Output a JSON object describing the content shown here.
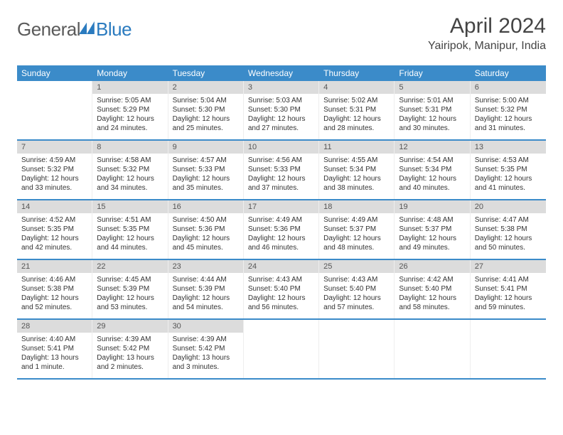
{
  "logo": {
    "word1": "General",
    "word2": "Blue"
  },
  "title": "April 2024",
  "location": "Yairipok, Manipur, India",
  "colors": {
    "header_bg": "#3b8bc9",
    "header_text": "#ffffff",
    "daynum_bg": "#dcdcdc",
    "logo_blue": "#2b7bbf",
    "text": "#333333",
    "week_border": "#3b8bc9"
  },
  "day_names": [
    "Sunday",
    "Monday",
    "Tuesday",
    "Wednesday",
    "Thursday",
    "Friday",
    "Saturday"
  ],
  "weeks": [
    [
      null,
      {
        "n": "1",
        "sr": "Sunrise: 5:05 AM",
        "ss": "Sunset: 5:29 PM",
        "d1": "Daylight: 12 hours",
        "d2": "and 24 minutes."
      },
      {
        "n": "2",
        "sr": "Sunrise: 5:04 AM",
        "ss": "Sunset: 5:30 PM",
        "d1": "Daylight: 12 hours",
        "d2": "and 25 minutes."
      },
      {
        "n": "3",
        "sr": "Sunrise: 5:03 AM",
        "ss": "Sunset: 5:30 PM",
        "d1": "Daylight: 12 hours",
        "d2": "and 27 minutes."
      },
      {
        "n": "4",
        "sr": "Sunrise: 5:02 AM",
        "ss": "Sunset: 5:31 PM",
        "d1": "Daylight: 12 hours",
        "d2": "and 28 minutes."
      },
      {
        "n": "5",
        "sr": "Sunrise: 5:01 AM",
        "ss": "Sunset: 5:31 PM",
        "d1": "Daylight: 12 hours",
        "d2": "and 30 minutes."
      },
      {
        "n": "6",
        "sr": "Sunrise: 5:00 AM",
        "ss": "Sunset: 5:32 PM",
        "d1": "Daylight: 12 hours",
        "d2": "and 31 minutes."
      }
    ],
    [
      {
        "n": "7",
        "sr": "Sunrise: 4:59 AM",
        "ss": "Sunset: 5:32 PM",
        "d1": "Daylight: 12 hours",
        "d2": "and 33 minutes."
      },
      {
        "n": "8",
        "sr": "Sunrise: 4:58 AM",
        "ss": "Sunset: 5:32 PM",
        "d1": "Daylight: 12 hours",
        "d2": "and 34 minutes."
      },
      {
        "n": "9",
        "sr": "Sunrise: 4:57 AM",
        "ss": "Sunset: 5:33 PM",
        "d1": "Daylight: 12 hours",
        "d2": "and 35 minutes."
      },
      {
        "n": "10",
        "sr": "Sunrise: 4:56 AM",
        "ss": "Sunset: 5:33 PM",
        "d1": "Daylight: 12 hours",
        "d2": "and 37 minutes."
      },
      {
        "n": "11",
        "sr": "Sunrise: 4:55 AM",
        "ss": "Sunset: 5:34 PM",
        "d1": "Daylight: 12 hours",
        "d2": "and 38 minutes."
      },
      {
        "n": "12",
        "sr": "Sunrise: 4:54 AM",
        "ss": "Sunset: 5:34 PM",
        "d1": "Daylight: 12 hours",
        "d2": "and 40 minutes."
      },
      {
        "n": "13",
        "sr": "Sunrise: 4:53 AM",
        "ss": "Sunset: 5:35 PM",
        "d1": "Daylight: 12 hours",
        "d2": "and 41 minutes."
      }
    ],
    [
      {
        "n": "14",
        "sr": "Sunrise: 4:52 AM",
        "ss": "Sunset: 5:35 PM",
        "d1": "Daylight: 12 hours",
        "d2": "and 42 minutes."
      },
      {
        "n": "15",
        "sr": "Sunrise: 4:51 AM",
        "ss": "Sunset: 5:35 PM",
        "d1": "Daylight: 12 hours",
        "d2": "and 44 minutes."
      },
      {
        "n": "16",
        "sr": "Sunrise: 4:50 AM",
        "ss": "Sunset: 5:36 PM",
        "d1": "Daylight: 12 hours",
        "d2": "and 45 minutes."
      },
      {
        "n": "17",
        "sr": "Sunrise: 4:49 AM",
        "ss": "Sunset: 5:36 PM",
        "d1": "Daylight: 12 hours",
        "d2": "and 46 minutes."
      },
      {
        "n": "18",
        "sr": "Sunrise: 4:49 AM",
        "ss": "Sunset: 5:37 PM",
        "d1": "Daylight: 12 hours",
        "d2": "and 48 minutes."
      },
      {
        "n": "19",
        "sr": "Sunrise: 4:48 AM",
        "ss": "Sunset: 5:37 PM",
        "d1": "Daylight: 12 hours",
        "d2": "and 49 minutes."
      },
      {
        "n": "20",
        "sr": "Sunrise: 4:47 AM",
        "ss": "Sunset: 5:38 PM",
        "d1": "Daylight: 12 hours",
        "d2": "and 50 minutes."
      }
    ],
    [
      {
        "n": "21",
        "sr": "Sunrise: 4:46 AM",
        "ss": "Sunset: 5:38 PM",
        "d1": "Daylight: 12 hours",
        "d2": "and 52 minutes."
      },
      {
        "n": "22",
        "sr": "Sunrise: 4:45 AM",
        "ss": "Sunset: 5:39 PM",
        "d1": "Daylight: 12 hours",
        "d2": "and 53 minutes."
      },
      {
        "n": "23",
        "sr": "Sunrise: 4:44 AM",
        "ss": "Sunset: 5:39 PM",
        "d1": "Daylight: 12 hours",
        "d2": "and 54 minutes."
      },
      {
        "n": "24",
        "sr": "Sunrise: 4:43 AM",
        "ss": "Sunset: 5:40 PM",
        "d1": "Daylight: 12 hours",
        "d2": "and 56 minutes."
      },
      {
        "n": "25",
        "sr": "Sunrise: 4:43 AM",
        "ss": "Sunset: 5:40 PM",
        "d1": "Daylight: 12 hours",
        "d2": "and 57 minutes."
      },
      {
        "n": "26",
        "sr": "Sunrise: 4:42 AM",
        "ss": "Sunset: 5:40 PM",
        "d1": "Daylight: 12 hours",
        "d2": "and 58 minutes."
      },
      {
        "n": "27",
        "sr": "Sunrise: 4:41 AM",
        "ss": "Sunset: 5:41 PM",
        "d1": "Daylight: 12 hours",
        "d2": "and 59 minutes."
      }
    ],
    [
      {
        "n": "28",
        "sr": "Sunrise: 4:40 AM",
        "ss": "Sunset: 5:41 PM",
        "d1": "Daylight: 13 hours",
        "d2": "and 1 minute."
      },
      {
        "n": "29",
        "sr": "Sunrise: 4:39 AM",
        "ss": "Sunset: 5:42 PM",
        "d1": "Daylight: 13 hours",
        "d2": "and 2 minutes."
      },
      {
        "n": "30",
        "sr": "Sunrise: 4:39 AM",
        "ss": "Sunset: 5:42 PM",
        "d1": "Daylight: 13 hours",
        "d2": "and 3 minutes."
      },
      null,
      null,
      null,
      null
    ]
  ]
}
